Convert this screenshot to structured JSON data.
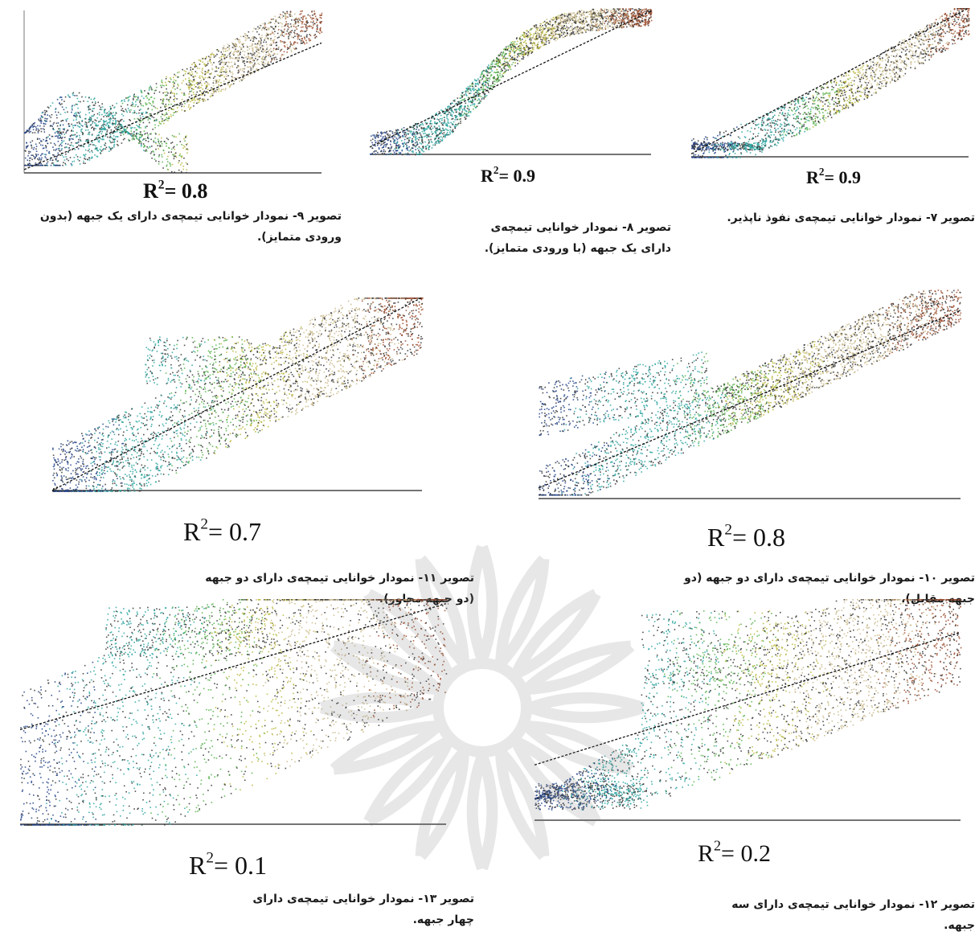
{
  "figures": [
    {
      "id": "fig7",
      "r2_value": "0.9",
      "caption": "تصویر ۷- نمودار خوانایی تیمچه‌ی نفوذ ناپذیر."
    },
    {
      "id": "fig8",
      "r2_value": "0.9",
      "caption": "تصویر ۸- نمودار خوانایی تیمچه‌ی دارای یک جبهه (با ورودی متمایز)."
    },
    {
      "id": "fig9",
      "r2_value": "0.8",
      "caption": "تصویر ۹- نمودار خوانایی تیمچه‌ی دارای یک جبهه (بدون ورودی متمایز)."
    },
    {
      "id": "fig10",
      "r2_value": "0.8",
      "caption": "تصویر ۱۰- نمودار خوانایی تیمچه‌ی دارای دو جبهه (دو جبهه مقابل)."
    },
    {
      "id": "fig11",
      "r2_value": "0.7",
      "caption": "تصویر ۱۱- نمودار خوانایی تیمچه‌ی دارای دو جبهه (دو جبهه مجاور)."
    },
    {
      "id": "fig12",
      "r2_value": "0.2",
      "caption": "تصویر ۱۲- نمودار خوانایی تیمچه‌ی دارای سه جبهه."
    },
    {
      "id": "fig13",
      "r2_value": "0.1",
      "caption": "تصویر ۱۳- نمودار خوانایی تیمچه‌ی دارای چهار جبهه."
    }
  ],
  "r2_prefix": "R",
  "r2_exp": "2",
  "r2_eq": "= ",
  "colors": {
    "teal": "#2aa5a0",
    "green": "#55b04a",
    "olive": "#b9b73a",
    "tan": "#c9b88a",
    "brown": "#9a4a2a",
    "navy": "#1f3f86",
    "point": "#333333"
  }
}
